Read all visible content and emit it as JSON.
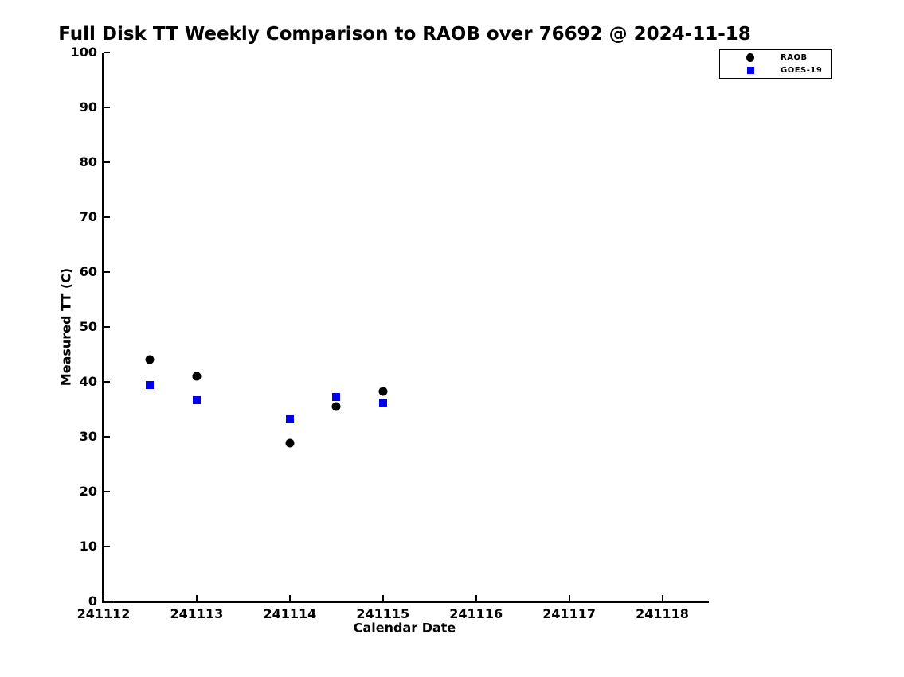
{
  "title": "Full Disk TT Weekly Comparison to RAOB over 76692 @ 2024-11-18",
  "chart_data": {
    "type": "scatter",
    "title": "Full Disk TT Weekly Comparison to RAOB over 76692 @ 2024-11-18",
    "xlabel": "Calendar Date",
    "ylabel": "Measured TT (C)",
    "xlim": [
      241112,
      241118.5
    ],
    "ylim": [
      0,
      100
    ],
    "x_ticks": [
      241112,
      241113,
      241114,
      241115,
      241116,
      241117,
      241118
    ],
    "y_ticks": [
      0,
      10,
      20,
      30,
      40,
      50,
      60,
      70,
      80,
      90,
      100
    ],
    "grid": false,
    "legend_position": "top-right",
    "series": [
      {
        "name": "RAOB",
        "marker": "circle",
        "color": "#000000",
        "points": [
          [
            241112.5,
            44.0
          ],
          [
            241113.0,
            41.0
          ],
          [
            241114.0,
            28.8
          ],
          [
            241114.5,
            35.5
          ],
          [
            241115.0,
            38.2
          ]
        ]
      },
      {
        "name": "GOES-19",
        "marker": "square",
        "color": "#0000ee",
        "points": [
          [
            241112.5,
            39.4
          ],
          [
            241113.0,
            36.6
          ],
          [
            241114.0,
            33.2
          ],
          [
            241114.5,
            37.2
          ],
          [
            241115.0,
            36.2
          ]
        ]
      }
    ]
  }
}
